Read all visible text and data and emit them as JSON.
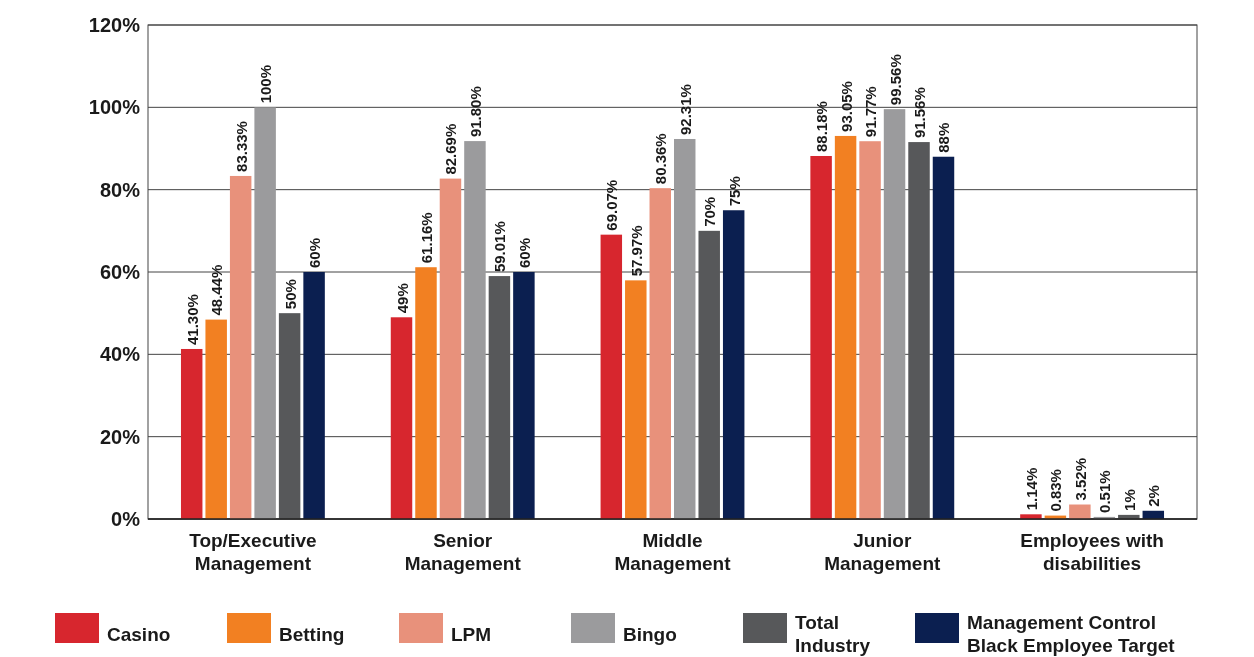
{
  "chart_data": {
    "type": "bar",
    "categories": [
      "Top/Executive Management",
      "Senior Management",
      "Middle Management",
      "Junior Management",
      "Employees with disabilities"
    ],
    "series": [
      {
        "name": "Casino",
        "color": "#d7262e",
        "values": [
          41.3,
          49,
          69.07,
          88.18,
          1.14
        ],
        "value_labels": [
          "41.30%",
          "49%",
          "69.07%",
          "88.18%",
          "1.14%"
        ]
      },
      {
        "name": "Betting",
        "color": "#f28022",
        "values": [
          48.44,
          61.16,
          57.97,
          93.05,
          0.83
        ],
        "value_labels": [
          "48.44%",
          "61.16%",
          "57.97%",
          "93.05%",
          "0.83%"
        ]
      },
      {
        "name": "LPM",
        "color": "#e8917b",
        "values": [
          83.33,
          82.69,
          80.36,
          91.77,
          3.52
        ],
        "value_labels": [
          "83.33%",
          "82.69%",
          "80.36%",
          "91.77%",
          "3.52%"
        ]
      },
      {
        "name": "Bingo",
        "color": "#9b9b9d",
        "values": [
          100,
          91.8,
          92.31,
          99.56,
          0.51
        ],
        "value_labels": [
          "100%",
          "91.80%",
          "92.31%",
          "99.56%",
          "0.51%"
        ]
      },
      {
        "name": "Total Industry",
        "color": "#57585a",
        "values": [
          50,
          59.01,
          70,
          91.56,
          1
        ],
        "value_labels": [
          "50%",
          "59.01%",
          "70%",
          "91.56%",
          "1%"
        ]
      },
      {
        "name": "Management Control Black Employee Target",
        "color": "#0b1f50",
        "values": [
          60,
          60,
          75,
          88,
          2
        ],
        "value_labels": [
          "60%",
          "60%",
          "75%",
          "88%",
          "2%"
        ]
      }
    ],
    "ylim": [
      0,
      120
    ],
    "yticks": [
      {
        "value": 0,
        "label": "0%"
      },
      {
        "value": 20,
        "label": "20%"
      },
      {
        "value": 40,
        "label": "40%"
      },
      {
        "value": 60,
        "label": "60%"
      },
      {
        "value": 80,
        "label": "80%"
      },
      {
        "value": 100,
        "label": "100%"
      },
      {
        "value": 120,
        "label": "120%"
      }
    ],
    "grid": "y",
    "legend": "bottom"
  }
}
